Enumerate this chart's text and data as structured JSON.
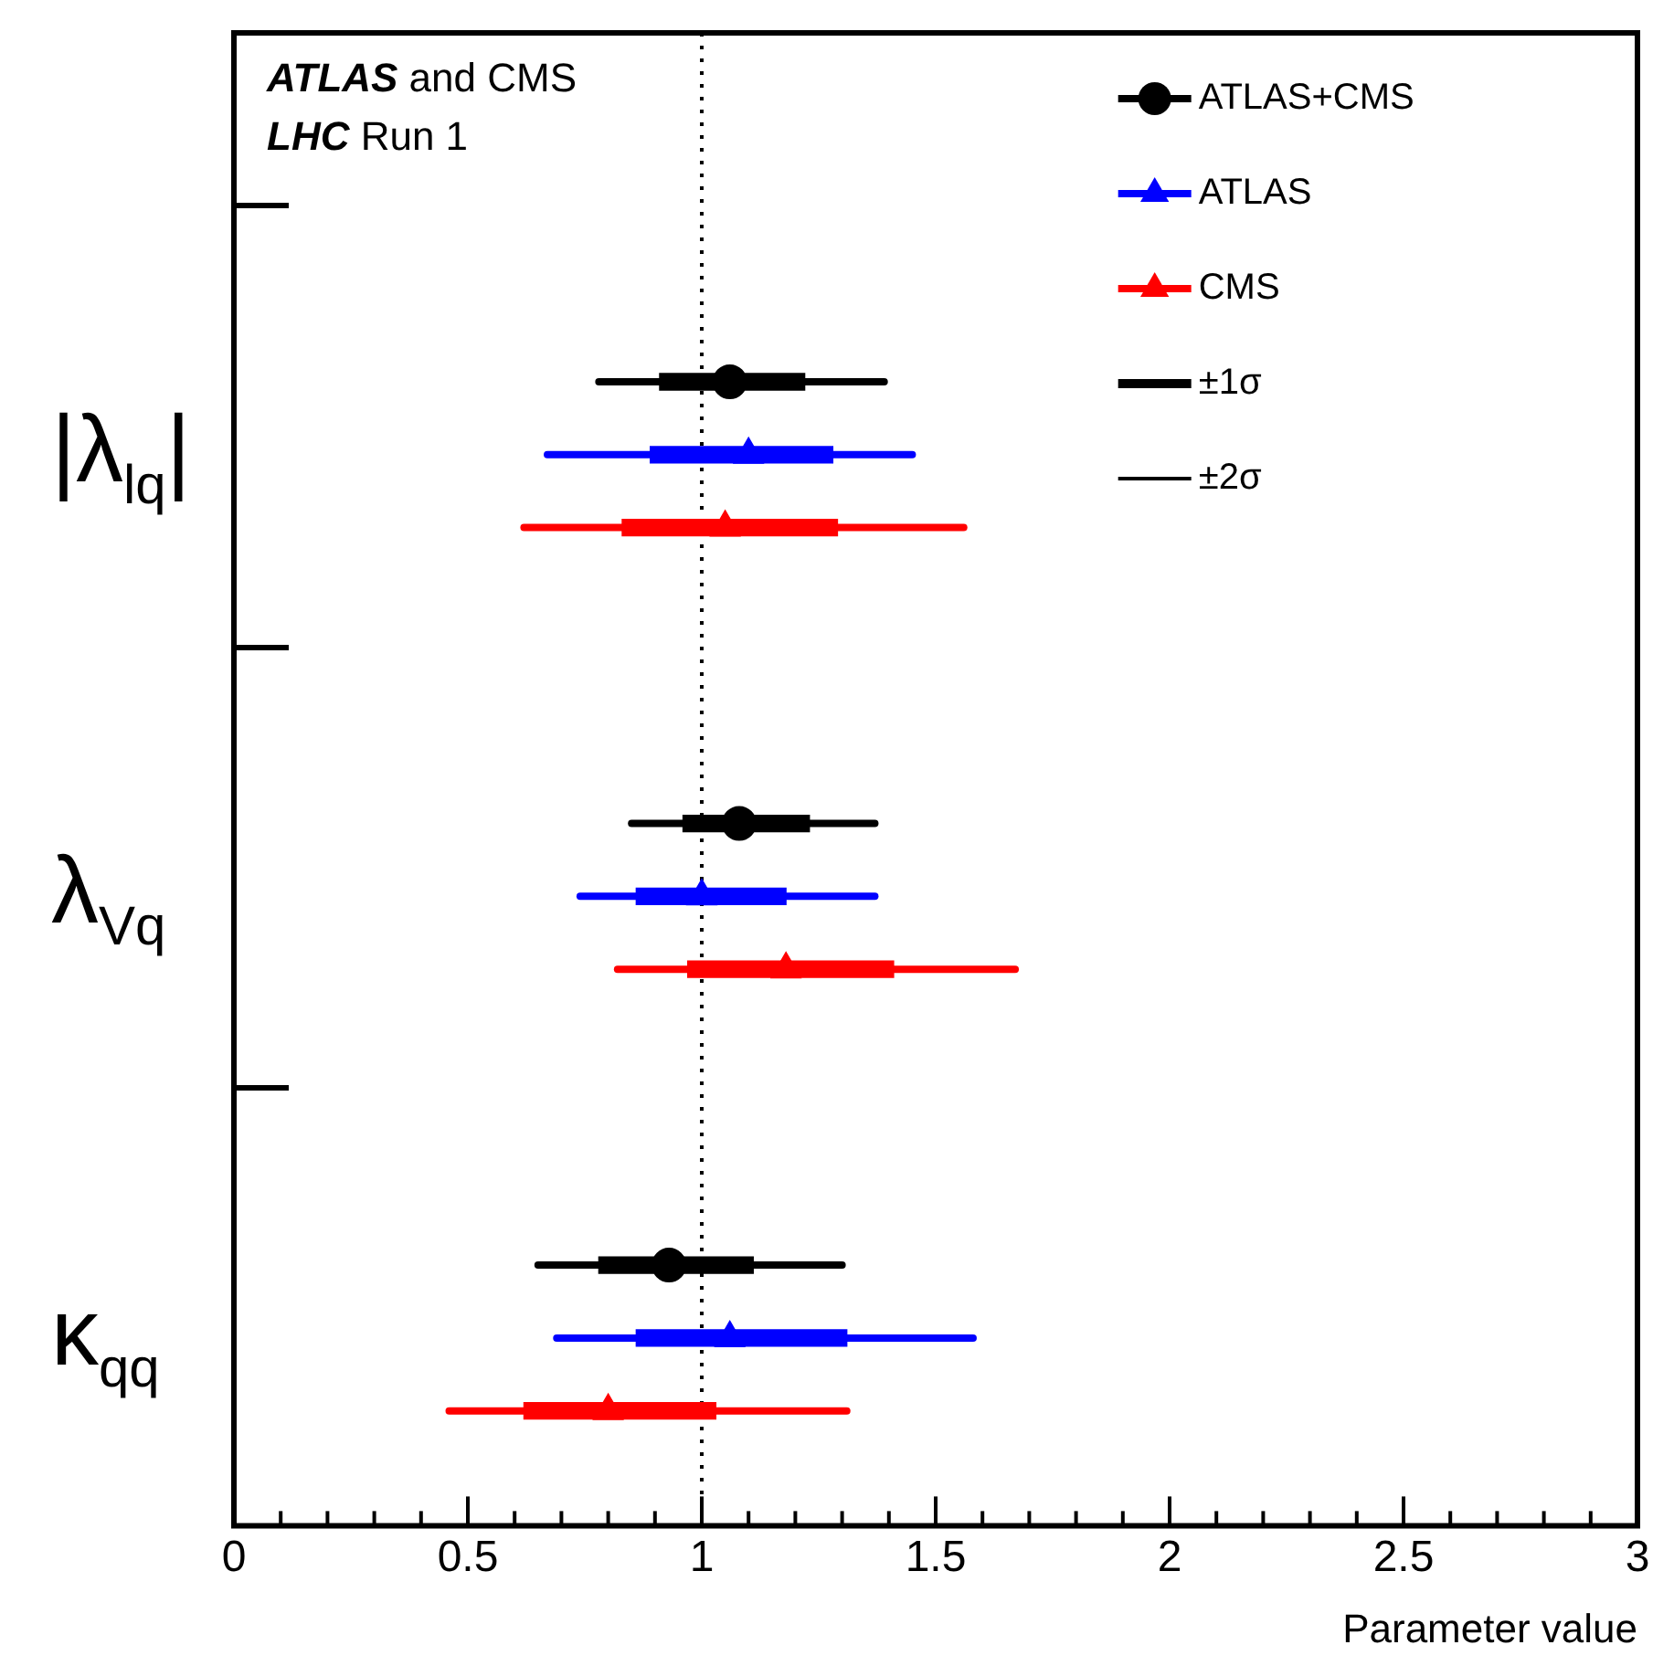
{
  "chart_data": {
    "type": "scatter",
    "orientation": "horizontal",
    "xlabel": "Parameter value",
    "categories": [
      "|λ$_{lq}$|",
      "λ$_{Vq}$",
      "κ$_{qq}$"
    ],
    "xlim": [
      0,
      3
    ],
    "xticks": [
      0,
      {
        "value": 0.1,
        "label": null
      },
      {
        "value": 0.2,
        "label": null
      },
      {
        "value": 0.3,
        "label": null
      },
      {
        "value": 0.4,
        "label": null
      },
      0.5,
      {
        "value": 0.6,
        "label": null
      },
      {
        "value": 0.7,
        "label": null
      },
      {
        "value": 0.8,
        "label": null
      },
      {
        "value": 0.9,
        "label": null
      },
      1,
      {
        "value": 1.1,
        "label": null
      },
      {
        "value": 1.2,
        "label": null
      },
      {
        "value": 1.3,
        "label": null
      },
      {
        "value": 1.4,
        "label": null
      },
      1.5,
      {
        "value": 1.6,
        "label": null
      },
      {
        "value": 1.7,
        "label": null
      },
      {
        "value": 1.8,
        "label": null
      },
      {
        "value": 1.9,
        "label": null
      },
      2,
      {
        "value": 2.1,
        "label": null
      },
      {
        "value": 2.2,
        "label": null
      },
      {
        "value": 2.3,
        "label": null
      },
      {
        "value": 2.4,
        "label": null
      },
      2.5,
      {
        "value": 2.6,
        "label": null
      },
      {
        "value": 2.7,
        "label": null
      },
      {
        "value": 2.8,
        "label": null
      },
      {
        "value": 2.9,
        "label": null
      },
      3
    ],
    "series": [
      {
        "name": "ATLAS+CMS",
        "color": "#000000",
        "marker": "circle",
        "values": [
          1.06,
          1.08,
          0.93
        ],
        "errors": [
          [
            0.78,
            1.39
          ],
          [
            0.85,
            1.37
          ],
          [
            0.65,
            1.3
          ]
        ]
      },
      {
        "name": "ATLAS",
        "color": "#0000ff",
        "marker": "triangle",
        "values": [
          1.1,
          1.0,
          1.06
        ],
        "errors": [
          [
            0.67,
            1.45
          ],
          [
            0.74,
            1.37
          ],
          [
            0.69,
            1.58
          ]
        ]
      },
      {
        "name": "CMS",
        "color": "#ff0000",
        "marker": "triangle",
        "values": [
          1.05,
          1.18,
          0.8
        ],
        "errors": [
          [
            0.62,
            1.56
          ],
          [
            0.82,
            1.67
          ],
          [
            0.46,
            1.31
          ]
        ]
      },
      {
        "type": "bar",
        "color": "#000000",
        "base": [
          0.91,
          0.96,
          0.78
        ],
        "values": [
          0.31,
          0.27,
          0.33
        ]
      },
      {
        "type": "bar",
        "color": "#0000ff",
        "base": [
          0.89,
          0.86,
          0.86
        ],
        "values": [
          0.39,
          0.32,
          0.45
        ]
      },
      {
        "type": "bar",
        "color": "#ff0000",
        "base": [
          0.83,
          0.97,
          0.62
        ],
        "values": [
          0.46,
          0.44,
          0.41
        ]
      },
      {
        "name": "±1σ",
        "color": "#000000",
        "type": "line",
        "values": [
          null,
          null,
          null
        ]
      },
      {
        "name": "±2σ",
        "color": "#000000",
        "type": "line",
        "values": [
          null,
          null,
          null
        ]
      }
    ],
    "ref_lines": [
      {
        "axis": "x",
        "value": 1,
        "color": "#000000",
        "line_style": "dotted"
      }
    ],
    "annotations": [
      "ATLAS and CMS",
      "LHC Run 1"
    ],
    "legend": "top right",
    "grid": false
  }
}
